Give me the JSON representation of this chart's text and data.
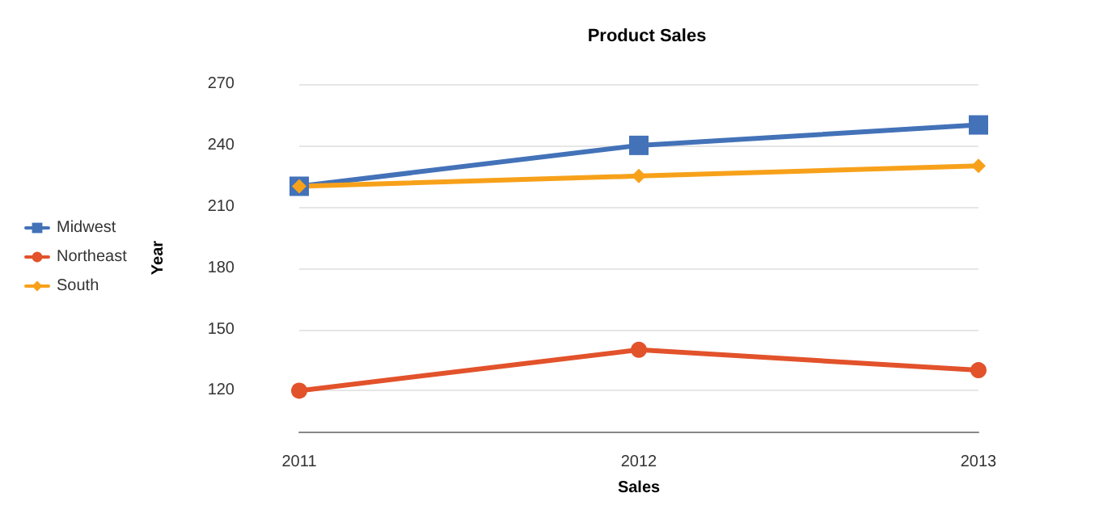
{
  "chart_data": {
    "type": "line",
    "title": "Product Sales",
    "xlabel": "Sales",
    "ylabel": "Year",
    "categories": [
      "2011",
      "2012",
      "2013"
    ],
    "series": [
      {
        "name": "Midwest",
        "color": "#4372b8",
        "marker": "square",
        "values": [
          220,
          240,
          250
        ]
      },
      {
        "name": "Northeast",
        "color": "#e2522b",
        "marker": "circle",
        "values": [
          120,
          140,
          130
        ]
      },
      {
        "name": "South",
        "color": "#f7a11a",
        "marker": "diamond",
        "values": [
          220,
          225,
          230
        ]
      }
    ],
    "ylim": [
      100,
      270
    ],
    "yticks": [
      120,
      150,
      180,
      210,
      240,
      270
    ],
    "grid": "y",
    "legend": "left",
    "line_style": "solid"
  }
}
